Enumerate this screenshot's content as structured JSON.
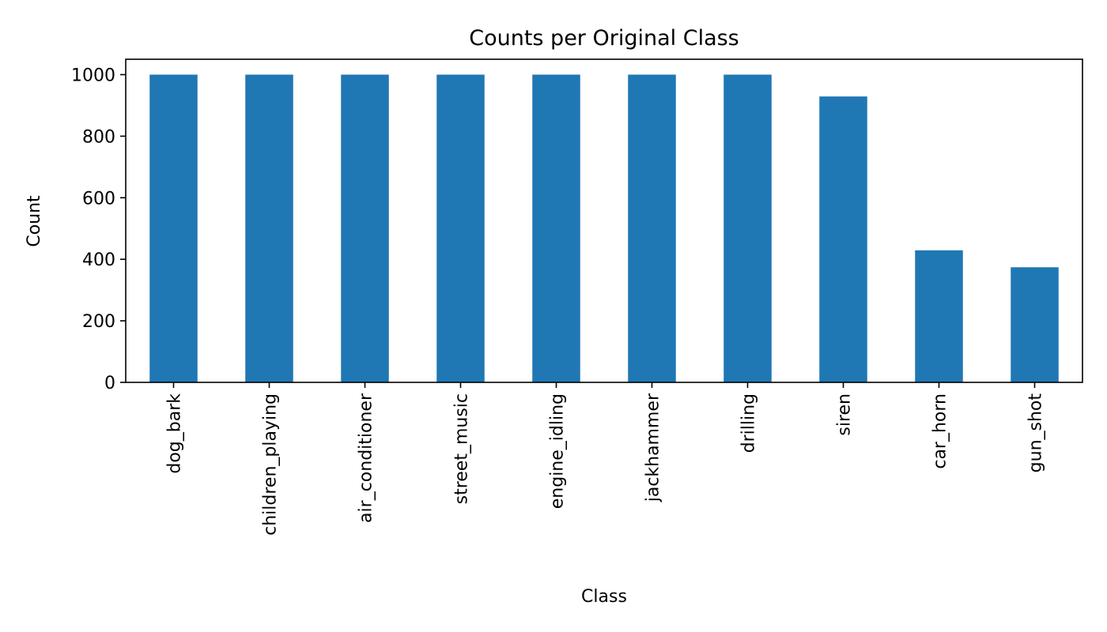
{
  "chart_data": {
    "type": "bar",
    "title": "Counts per Original Class",
    "xlabel": "Class",
    "ylabel": "Count",
    "categories": [
      "dog_bark",
      "children_playing",
      "air_conditioner",
      "street_music",
      "engine_idling",
      "jackhammer",
      "drilling",
      "siren",
      "car_horn",
      "gun_shot"
    ],
    "values": [
      1000,
      1000,
      1000,
      1000,
      1000,
      1000,
      1000,
      929,
      429,
      374
    ],
    "yticks": [
      0,
      200,
      400,
      600,
      800,
      1000
    ],
    "ylim": [
      0,
      1050
    ],
    "grid": false,
    "legend": "none",
    "bar_color": "#1f77b4"
  }
}
